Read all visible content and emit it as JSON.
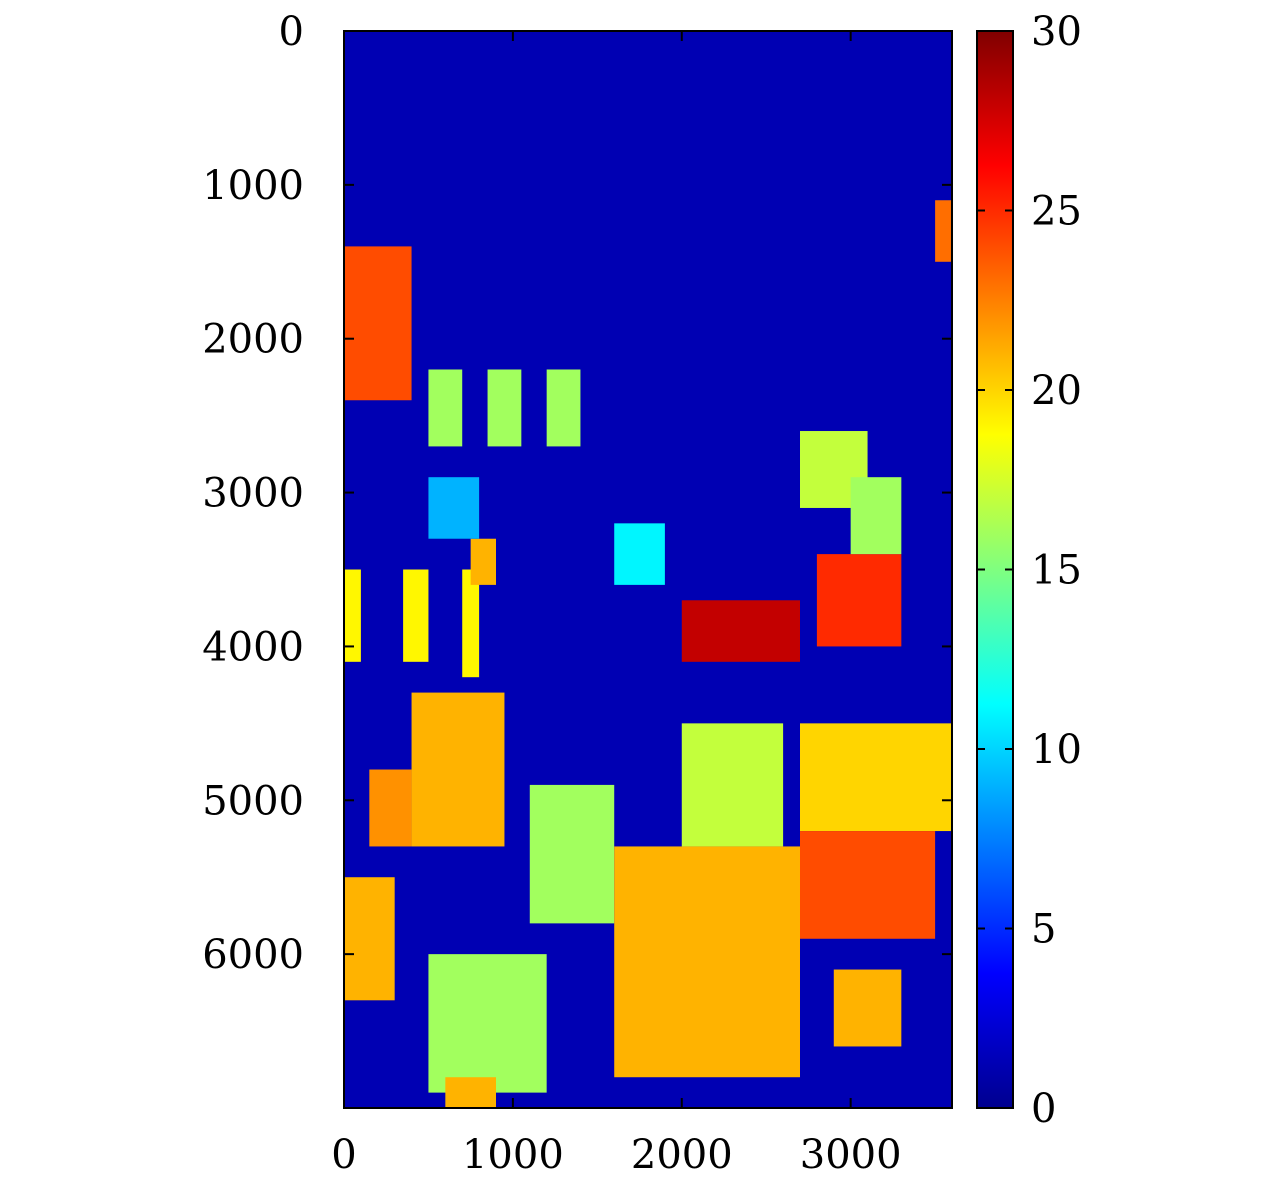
{
  "chart_data": {
    "type": "heatmap",
    "title": "",
    "xlabel": "",
    "ylabel": "",
    "xlim": [
      0,
      3600
    ],
    "ylim": [
      7000,
      0
    ],
    "xticks": [
      0,
      1000,
      2000,
      3000
    ],
    "yticks": [
      0,
      1000,
      2000,
      3000,
      4000,
      5000,
      6000
    ],
    "colorbar": {
      "colormap": "jet",
      "range": [
        0,
        30
      ],
      "ticks": [
        0,
        5,
        10,
        15,
        20,
        25,
        30
      ]
    },
    "background_level": 1.5,
    "features": [
      {
        "kind": "rect",
        "x": [
          0,
          400
        ],
        "y": [
          1400,
          2400
        ],
        "value": 24
      },
      {
        "kind": "rect",
        "x": [
          500,
          700
        ],
        "y": [
          2200,
          2700
        ],
        "value": 16
      },
      {
        "kind": "rect",
        "x": [
          850,
          1050
        ],
        "y": [
          2200,
          2700
        ],
        "value": 16
      },
      {
        "kind": "rect",
        "x": [
          1200,
          1400
        ],
        "y": [
          2200,
          2700
        ],
        "value": 16
      },
      {
        "kind": "rect",
        "x": [
          0,
          100
        ],
        "y": [
          3500,
          4100
        ],
        "value": 19
      },
      {
        "kind": "rect",
        "x": [
          350,
          500
        ],
        "y": [
          3500,
          4100
        ],
        "value": 19
      },
      {
        "kind": "rect",
        "x": [
          700,
          800
        ],
        "y": [
          3500,
          4200
        ],
        "value": 19
      },
      {
        "kind": "rect",
        "x": [
          750,
          900
        ],
        "y": [
          3300,
          3600
        ],
        "value": 21
      },
      {
        "kind": "rect",
        "x": [
          2000,
          2700
        ],
        "y": [
          3700,
          4100
        ],
        "value": 28
      },
      {
        "kind": "rect",
        "x": [
          2800,
          3300
        ],
        "y": [
          3400,
          4000
        ],
        "value": 25
      },
      {
        "kind": "rect",
        "x": [
          2700,
          3100
        ],
        "y": [
          2600,
          3100
        ],
        "value": 17
      },
      {
        "kind": "rect",
        "x": [
          3000,
          3300
        ],
        "y": [
          2900,
          3400
        ],
        "value": 16
      },
      {
        "kind": "rect",
        "x": [
          3500,
          3600
        ],
        "y": [
          1100,
          1500
        ],
        "value": 23
      },
      {
        "kind": "rect",
        "x": [
          400,
          950
        ],
        "y": [
          4300,
          5300
        ],
        "value": 21
      },
      {
        "kind": "rect",
        "x": [
          150,
          400
        ],
        "y": [
          4800,
          5300
        ],
        "value": 22
      },
      {
        "kind": "rect",
        "x": [
          0,
          300
        ],
        "y": [
          5500,
          6300
        ],
        "value": 21
      },
      {
        "kind": "rect",
        "x": [
          2000,
          2600
        ],
        "y": [
          4500,
          5300
        ],
        "value": 17
      },
      {
        "kind": "rect",
        "x": [
          2700,
          3600
        ],
        "y": [
          4500,
          5200
        ],
        "value": 20
      },
      {
        "kind": "rect",
        "x": [
          2700,
          3500
        ],
        "y": [
          5200,
          5900
        ],
        "value": 24
      },
      {
        "kind": "rect",
        "x": [
          1100,
          1600
        ],
        "y": [
          4900,
          5800
        ],
        "value": 16
      },
      {
        "kind": "rect",
        "x": [
          1600,
          2700
        ],
        "y": [
          5300,
          6800
        ],
        "value": 21
      },
      {
        "kind": "rect",
        "x": [
          2900,
          3300
        ],
        "y": [
          6100,
          6600
        ],
        "value": 21
      },
      {
        "kind": "rect",
        "x": [
          500,
          1200
        ],
        "y": [
          6000,
          6900
        ],
        "value": 16
      },
      {
        "kind": "rect",
        "x": [
          600,
          900
        ],
        "y": [
          6800,
          7000
        ],
        "value": 21
      },
      {
        "kind": "rect",
        "x": [
          1600,
          1900
        ],
        "y": [
          3200,
          3600
        ],
        "value": 11
      },
      {
        "kind": "rect",
        "x": [
          500,
          800
        ],
        "y": [
          2900,
          3300
        ],
        "value": 9
      }
    ]
  }
}
